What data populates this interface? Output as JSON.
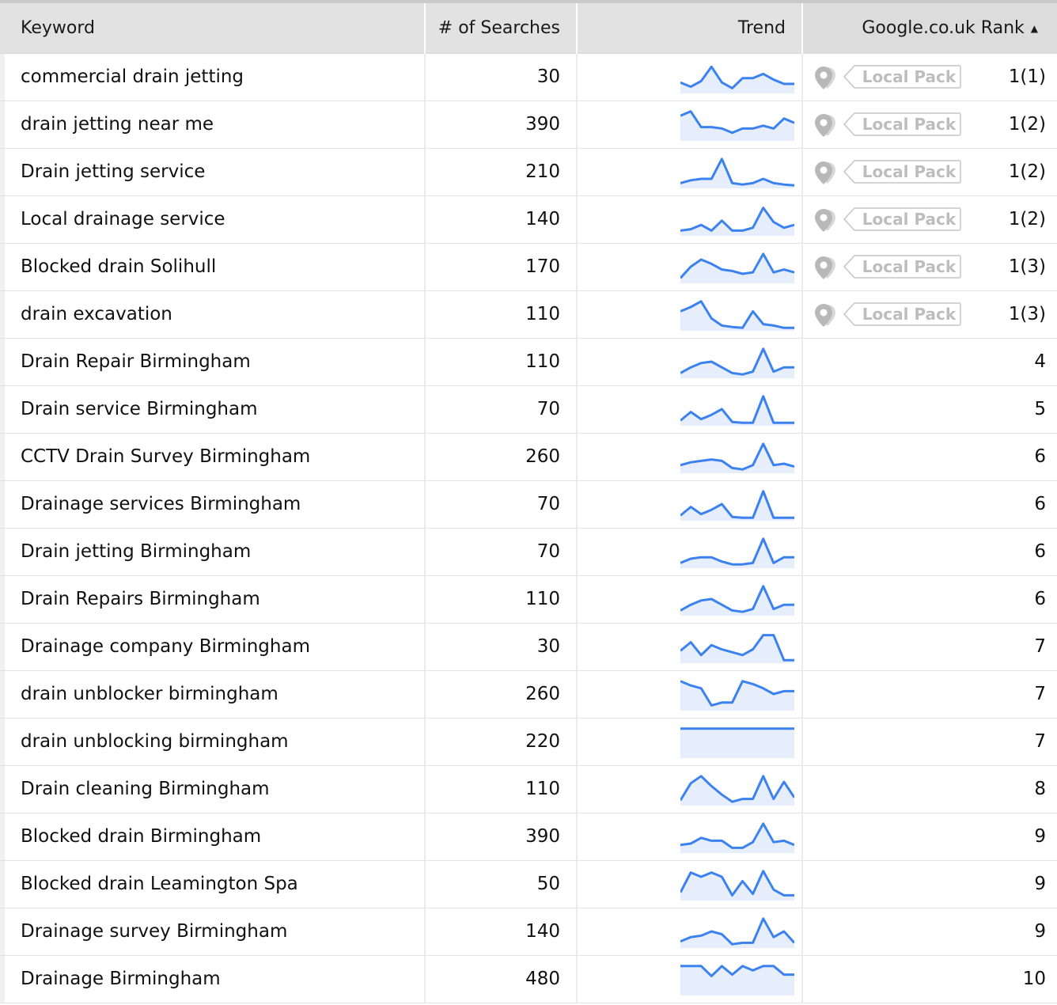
{
  "columns": {
    "keyword": "Keyword",
    "searches": "# of Searches",
    "trend": "Trend",
    "rank": "Google.co.uk Rank"
  },
  "sort_indicator": "▲",
  "local_pack_label": "Local Pack",
  "colors": {
    "trend_line": "#3b82f0",
    "trend_fill": "#e6eefb",
    "header_bg": "#e2e2e2"
  },
  "rows": [
    {
      "keyword": "commercial drain jetting",
      "searches": "30",
      "rank": "1(1)",
      "local_pack": true,
      "trend": [
        0.3,
        0.15,
        0.35,
        0.85,
        0.3,
        0.1,
        0.45,
        0.45,
        0.6,
        0.4,
        0.25,
        0.25
      ]
    },
    {
      "keyword": "drain jetting near me",
      "searches": "390",
      "rank": "1(2)",
      "local_pack": true,
      "trend": [
        0.8,
        0.95,
        0.4,
        0.4,
        0.35,
        0.2,
        0.35,
        0.35,
        0.45,
        0.35,
        0.7,
        0.55
      ]
    },
    {
      "keyword": "Drain jetting service",
      "searches": "210",
      "rank": "1(2)",
      "local_pack": true,
      "trend": [
        0.1,
        0.2,
        0.25,
        0.25,
        0.95,
        0.1,
        0.05,
        0.1,
        0.25,
        0.1,
        0.05,
        0.02
      ]
    },
    {
      "keyword": "Local drainage service",
      "searches": "140",
      "rank": "1(2)",
      "local_pack": true,
      "trend": [
        0.1,
        0.15,
        0.3,
        0.1,
        0.45,
        0.1,
        0.1,
        0.2,
        0.9,
        0.4,
        0.2,
        0.3
      ]
    },
    {
      "keyword": "Blocked drain Solihull",
      "searches": "170",
      "rank": "1(3)",
      "local_pack": true,
      "trend": [
        0.1,
        0.5,
        0.75,
        0.6,
        0.4,
        0.35,
        0.25,
        0.3,
        0.95,
        0.3,
        0.4,
        0.3
      ]
    },
    {
      "keyword": "drain excavation",
      "searches": "110",
      "rank": "1(3)",
      "local_pack": true,
      "trend": [
        0.6,
        0.75,
        0.95,
        0.35,
        0.1,
        0.05,
        0.02,
        0.6,
        0.15,
        0.1,
        0.02,
        0.02
      ]
    },
    {
      "keyword": "Drain Repair Birmingham",
      "searches": "110",
      "rank": "4",
      "local_pack": false,
      "trend": [
        0.1,
        0.3,
        0.45,
        0.5,
        0.3,
        0.1,
        0.05,
        0.15,
        0.95,
        0.15,
        0.3,
        0.3
      ]
    },
    {
      "keyword": "Drain service Birmingham",
      "searches": "70",
      "rank": "5",
      "local_pack": false,
      "trend": [
        0.1,
        0.4,
        0.15,
        0.3,
        0.5,
        0.05,
        0.02,
        0.02,
        0.95,
        0.02,
        0.02,
        0.02
      ]
    },
    {
      "keyword": "CCTV Drain Survey Birmingham",
      "searches": "260",
      "rank": "6",
      "local_pack": false,
      "trend": [
        0.2,
        0.3,
        0.35,
        0.4,
        0.35,
        0.1,
        0.05,
        0.2,
        0.95,
        0.2,
        0.25,
        0.15
      ]
    },
    {
      "keyword": "Drainage services Birmingham",
      "searches": "70",
      "rank": "6",
      "local_pack": false,
      "trend": [
        0.1,
        0.4,
        0.15,
        0.3,
        0.5,
        0.05,
        0.02,
        0.02,
        0.95,
        0.02,
        0.02,
        0.02
      ]
    },
    {
      "keyword": "Drain jetting Birmingham",
      "searches": "70",
      "rank": "6",
      "local_pack": false,
      "trend": [
        0.1,
        0.25,
        0.3,
        0.3,
        0.15,
        0.05,
        0.05,
        0.1,
        0.95,
        0.1,
        0.3,
        0.3
      ]
    },
    {
      "keyword": "Drain Repairs Birmingham",
      "searches": "110",
      "rank": "6",
      "local_pack": false,
      "trend": [
        0.1,
        0.3,
        0.45,
        0.5,
        0.3,
        0.1,
        0.05,
        0.15,
        0.95,
        0.15,
        0.3,
        0.3
      ]
    },
    {
      "keyword": "Drainage company Birmingham",
      "searches": "30",
      "rank": "7",
      "local_pack": false,
      "trend": [
        0.35,
        0.65,
        0.2,
        0.55,
        0.4,
        0.3,
        0.2,
        0.4,
        0.9,
        0.9,
        0.02,
        0.02
      ]
    },
    {
      "keyword": "drain unblocker birmingham",
      "searches": "260",
      "rank": "7",
      "local_pack": false,
      "trend": [
        0.95,
        0.8,
        0.7,
        0.1,
        0.2,
        0.2,
        0.95,
        0.85,
        0.7,
        0.5,
        0.6,
        0.6
      ]
    },
    {
      "keyword": "drain unblocking birmingham",
      "searches": "220",
      "rank": "7",
      "local_pack": false,
      "trend": [
        0.95,
        0.95,
        0.95,
        0.95,
        0.95,
        0.95,
        0.95,
        0.95,
        0.95,
        0.95,
        0.95,
        0.95
      ]
    },
    {
      "keyword": "Drain cleaning Birmingham",
      "searches": "110",
      "rank": "8",
      "local_pack": false,
      "trend": [
        0.1,
        0.7,
        0.95,
        0.6,
        0.3,
        0.05,
        0.15,
        0.15,
        0.95,
        0.15,
        0.75,
        0.2
      ]
    },
    {
      "keyword": "Blocked drain Birmingham",
      "searches": "390",
      "rank": "9",
      "local_pack": false,
      "trend": [
        0.2,
        0.25,
        0.45,
        0.35,
        0.35,
        0.1,
        0.1,
        0.3,
        0.95,
        0.3,
        0.35,
        0.2
      ]
    },
    {
      "keyword": "Blocked drain Leamington Spa",
      "searches": "50",
      "rank": "9",
      "local_pack": false,
      "trend": [
        0.2,
        0.9,
        0.75,
        0.9,
        0.75,
        0.1,
        0.6,
        0.15,
        0.95,
        0.3,
        0.1,
        0.1
      ]
    },
    {
      "keyword": "Drainage survey Birmingham",
      "searches": "140",
      "rank": "9",
      "local_pack": false,
      "trend": [
        0.15,
        0.3,
        0.35,
        0.5,
        0.4,
        0.05,
        0.1,
        0.1,
        0.95,
        0.3,
        0.5,
        0.1
      ]
    },
    {
      "keyword": "Drainage Birmingham",
      "searches": "480",
      "rank": "10",
      "local_pack": false,
      "trend": [
        0.95,
        0.95,
        0.95,
        0.6,
        0.95,
        0.65,
        0.95,
        0.8,
        0.95,
        0.95,
        0.65,
        0.65
      ]
    }
  ]
}
